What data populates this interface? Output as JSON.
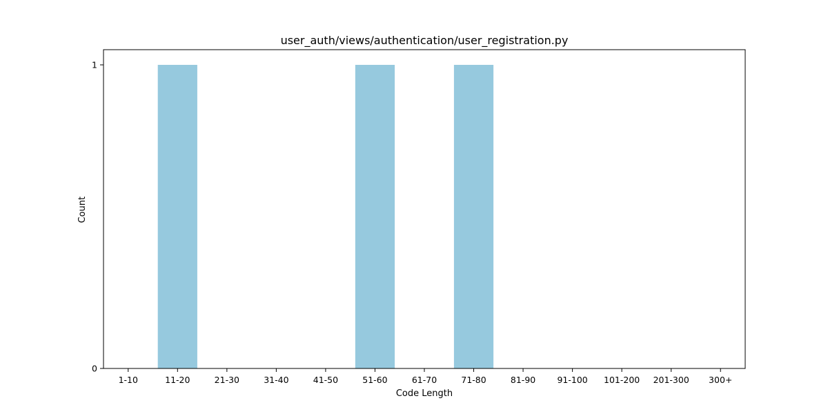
{
  "chart_data": {
    "type": "bar",
    "title": "user_auth/views/authentication/user_registration.py",
    "xlabel": "Code Length",
    "ylabel": "Count",
    "categories": [
      "1-10",
      "11-20",
      "21-30",
      "31-40",
      "41-50",
      "51-60",
      "61-70",
      "71-80",
      "81-90",
      "91-100",
      "101-200",
      "201-300",
      "300+"
    ],
    "values": [
      0,
      1,
      0,
      0,
      0,
      1,
      0,
      1,
      0,
      0,
      0,
      0,
      0
    ],
    "ylim": [
      0,
      1
    ],
    "yticks": [
      0,
      1
    ],
    "bar_color": "#96c9de",
    "grid": false,
    "legend": "none"
  }
}
